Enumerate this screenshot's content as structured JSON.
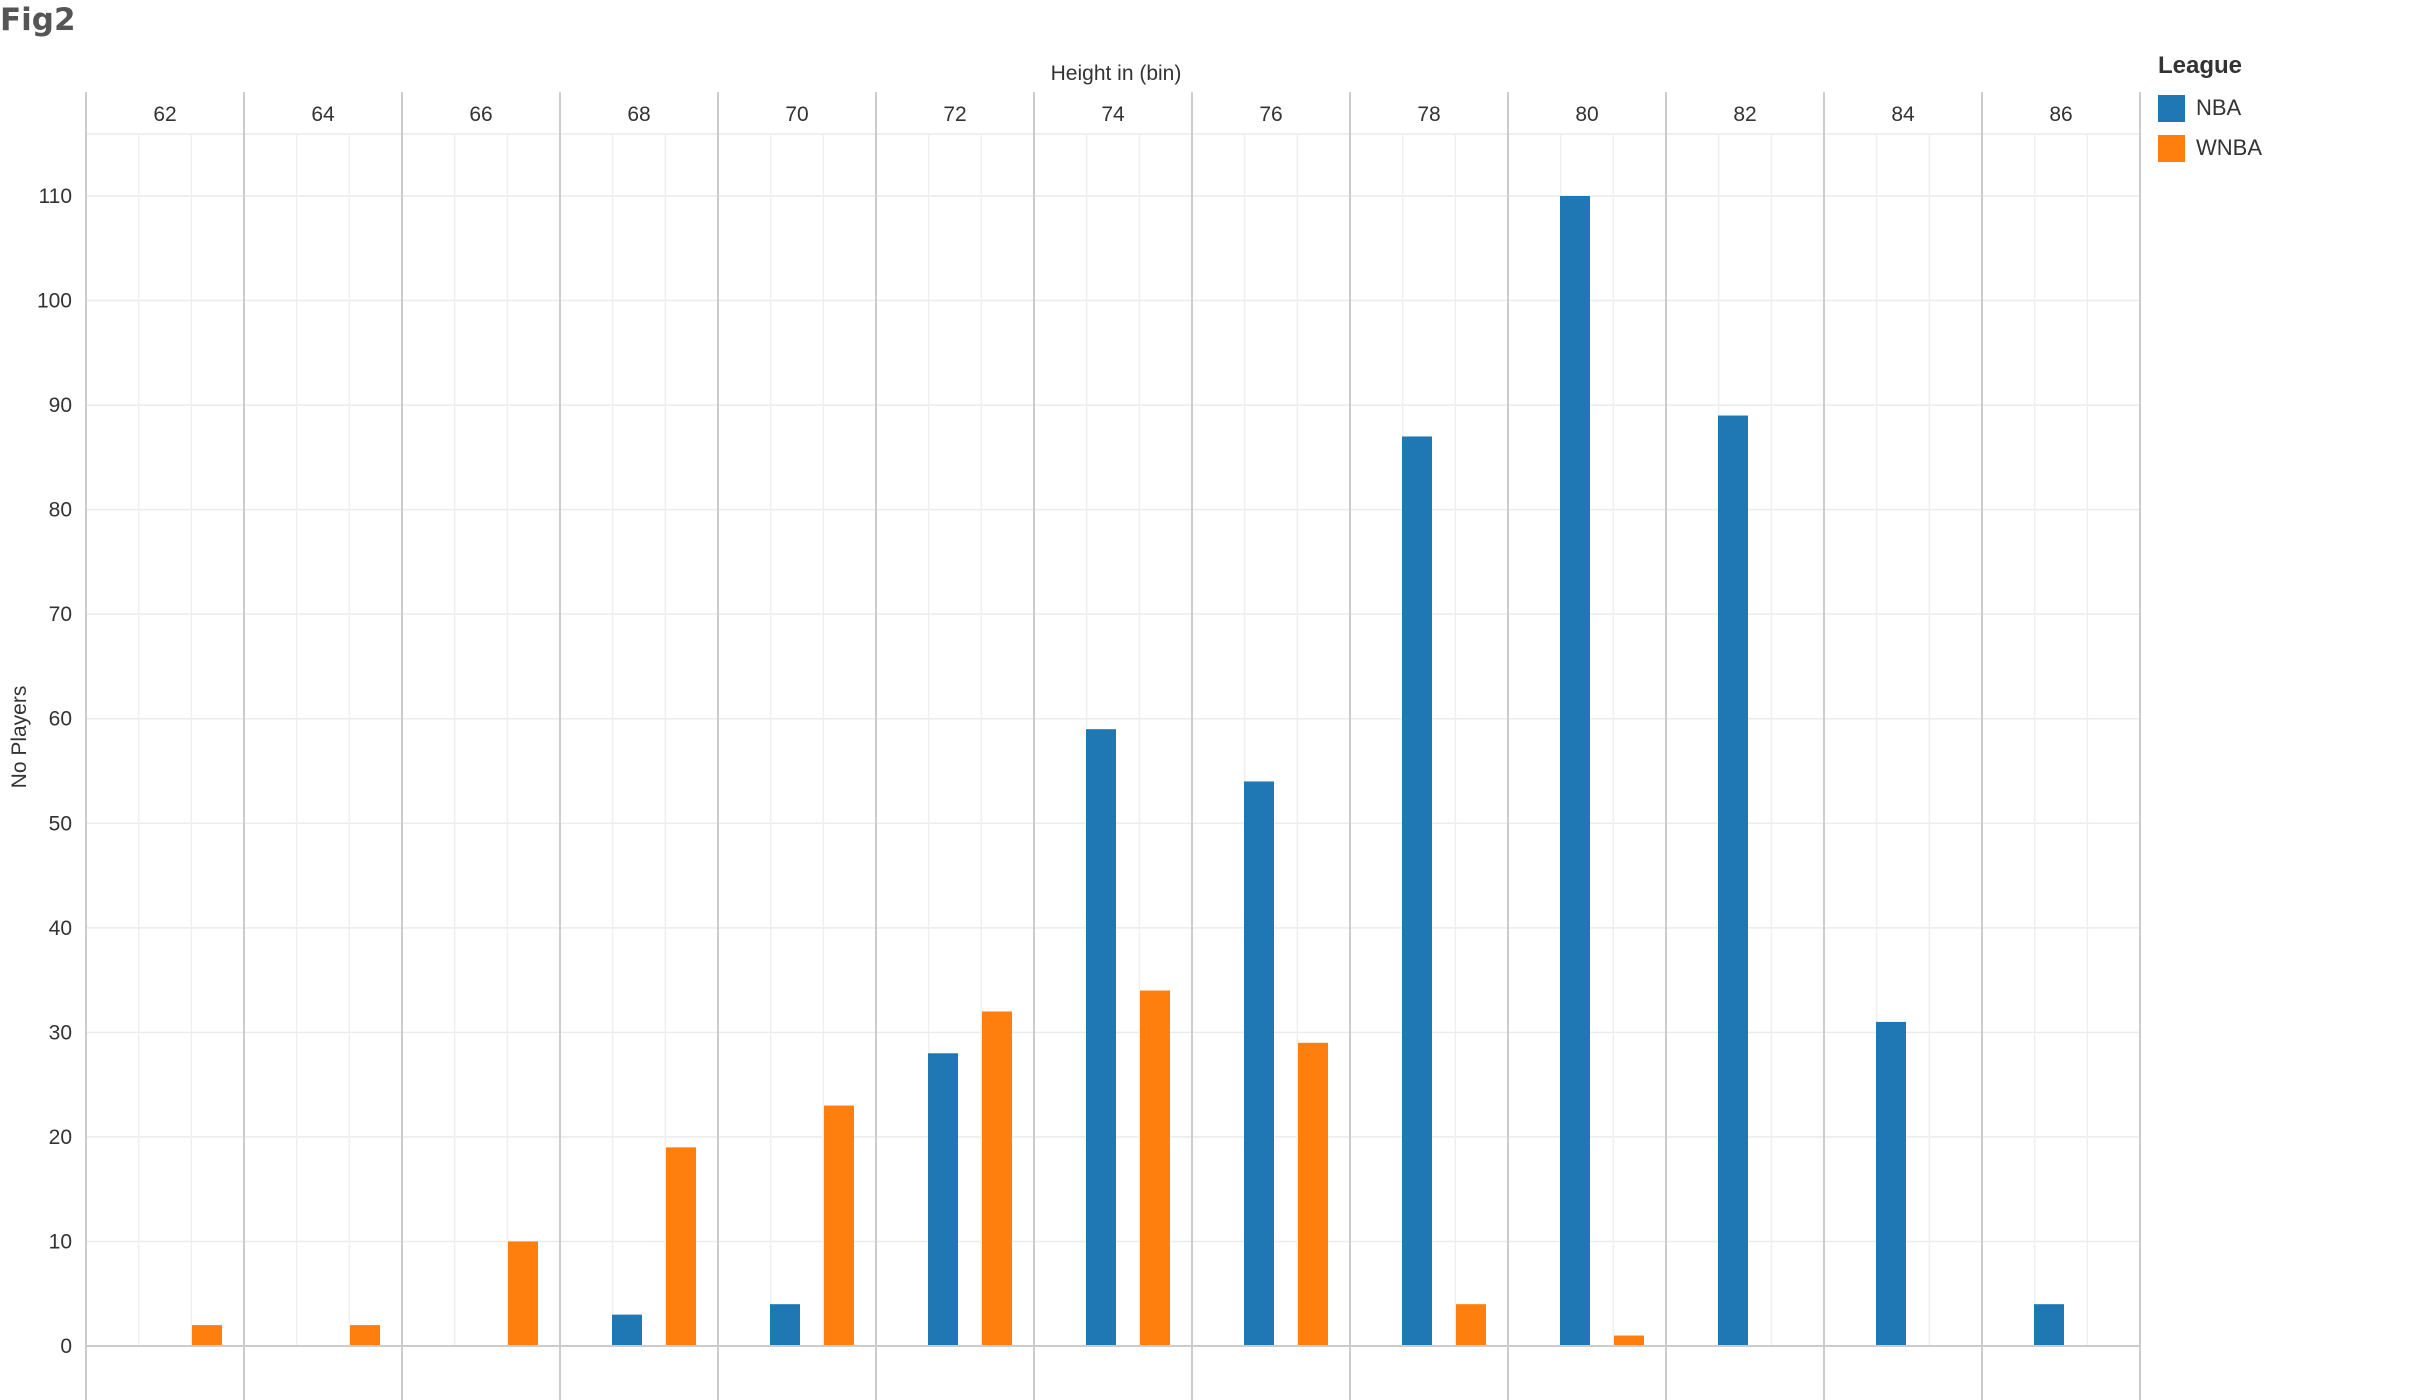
{
  "title": "Fig2",
  "chart_data": {
    "type": "bar",
    "title": "Fig2",
    "xlabel": "Height in (bin)",
    "ylabel": "No Players",
    "categories": [
      "62",
      "64",
      "66",
      "68",
      "70",
      "72",
      "74",
      "76",
      "78",
      "80",
      "82",
      "84",
      "86"
    ],
    "series": [
      {
        "name": "NBA",
        "color": "#1f77b4",
        "values": [
          0,
          0,
          0,
          3,
          4,
          28,
          59,
          54,
          87,
          110,
          89,
          31,
          4
        ]
      },
      {
        "name": "WNBA",
        "color": "#ff7f0e",
        "values": [
          2,
          2,
          10,
          19,
          23,
          32,
          34,
          29,
          4,
          1,
          0,
          0,
          0
        ]
      }
    ],
    "ylim": [
      0,
      110
    ],
    "yticks": [
      0,
      10,
      20,
      30,
      40,
      50,
      60,
      70,
      80,
      90,
      100,
      110
    ],
    "grid": true,
    "legend": {
      "title": "League",
      "position": "top-right"
    }
  }
}
